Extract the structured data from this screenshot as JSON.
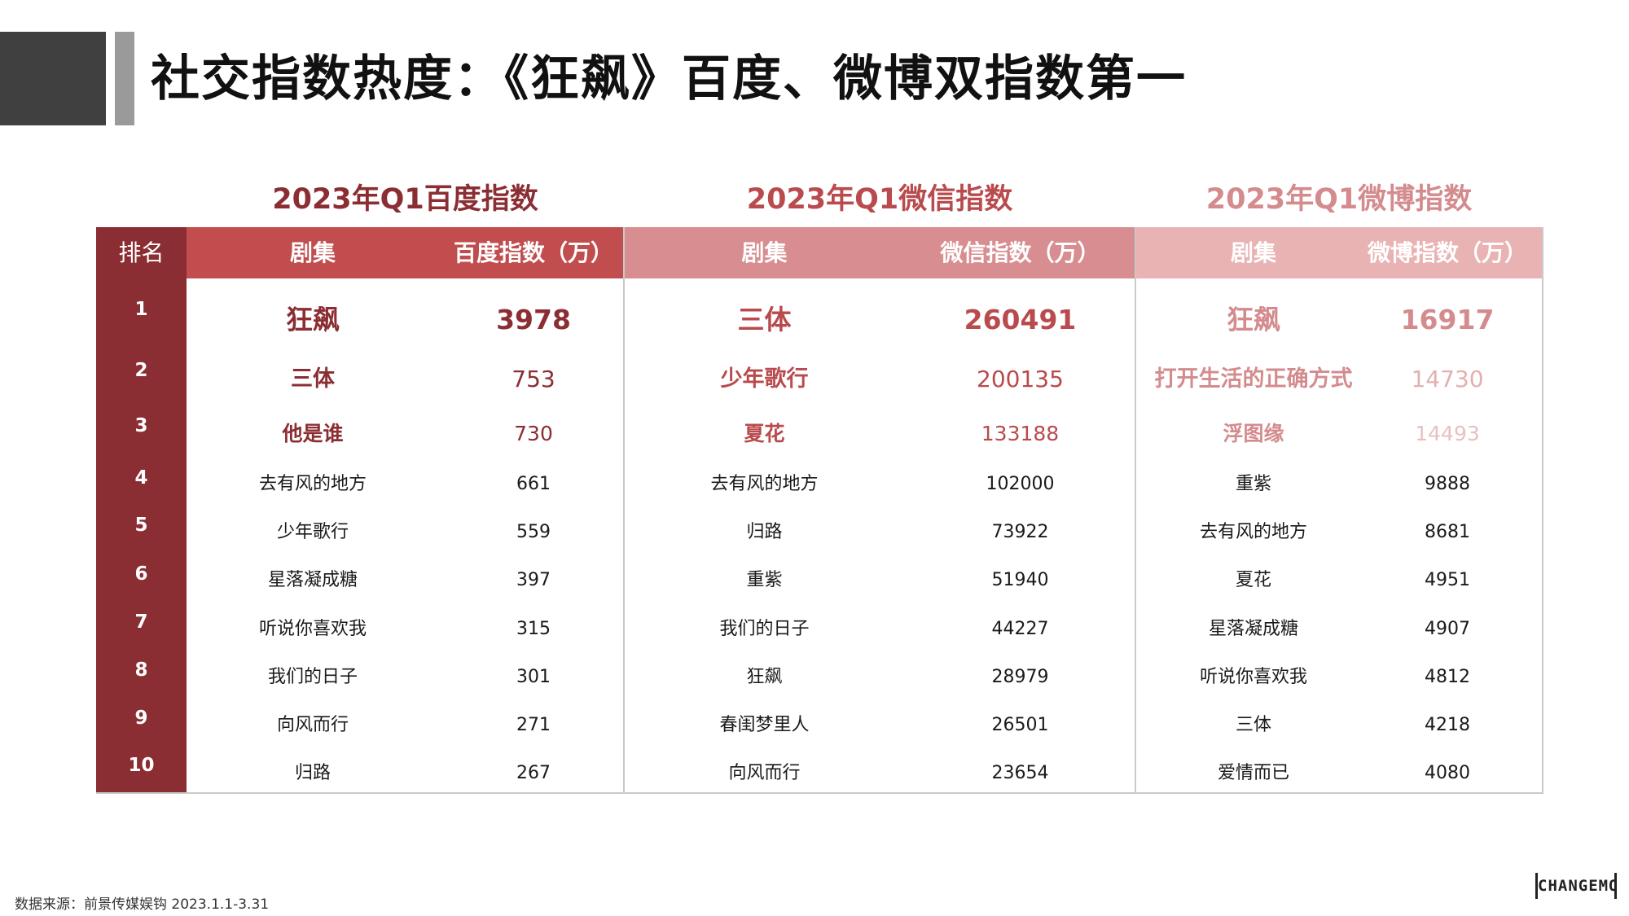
{
  "title": "社交指数热度：《狂飙》百度、微博双指数第一",
  "rank_header": "排名",
  "ranks": [
    "1",
    "2",
    "3",
    "4",
    "5",
    "6",
    "7",
    "8",
    "9",
    "10"
  ],
  "baidu": {
    "title": "2023年Q1百度指数",
    "col_name": "剧集",
    "col_value": "百度指数（万）",
    "rows": [
      {
        "name": "狂飙",
        "value": "3978"
      },
      {
        "name": "三体",
        "value": "753"
      },
      {
        "name": "他是谁",
        "value": "730"
      },
      {
        "name": "去有风的地方",
        "value": "661"
      },
      {
        "name": "少年歌行",
        "value": "559"
      },
      {
        "name": "星落凝成糖",
        "value": "397"
      },
      {
        "name": "听说你喜欢我",
        "value": "315"
      },
      {
        "name": "我们的日子",
        "value": "301"
      },
      {
        "name": "向风而行",
        "value": "271"
      },
      {
        "name": "归路",
        "value": "267"
      }
    ]
  },
  "weixin": {
    "title": "2023年Q1微信指数",
    "col_name": "剧集",
    "col_value": "微信指数（万）",
    "rows": [
      {
        "name": "三体",
        "value": "260491"
      },
      {
        "name": "少年歌行",
        "value": "200135"
      },
      {
        "name": "夏花",
        "value": "133188"
      },
      {
        "name": "去有风的地方",
        "value": "102000"
      },
      {
        "name": "归路",
        "value": "73922"
      },
      {
        "name": "重紫",
        "value": "51940"
      },
      {
        "name": "我们的日子",
        "value": "44227"
      },
      {
        "name": "狂飙",
        "value": "28979"
      },
      {
        "name": "春闺梦里人",
        "value": "26501"
      },
      {
        "name": "向风而行",
        "value": "23654"
      }
    ]
  },
  "weibo": {
    "title": "2023年Q1微博指数",
    "col_name": "剧集",
    "col_value": "微博指数（万）",
    "rows": [
      {
        "name": "狂飙",
        "value": "16917"
      },
      {
        "name": "打开生活的正确方式",
        "value": "14730"
      },
      {
        "name": "浮图缘",
        "value": "14493"
      },
      {
        "name": "重紫",
        "value": "9888"
      },
      {
        "name": "去有风的地方",
        "value": "8681"
      },
      {
        "name": "夏花",
        "value": "4951"
      },
      {
        "name": "星落凝成糖",
        "value": "4907"
      },
      {
        "name": "听说你喜欢我",
        "value": "4812"
      },
      {
        "name": "三体",
        "value": "4218"
      },
      {
        "name": "爱情而已",
        "value": "4080"
      }
    ]
  },
  "colors": {
    "dark_red": "#8b2e33",
    "baidu_header": "#c14d4f",
    "weixin_header": "#d88e90",
    "weibo_header": "#e9b3b4",
    "baidu_title": "#8b2e33",
    "weixin_title": "#b94a4d",
    "weibo_title": "#d48b8e"
  },
  "footer": "数据来源：前景传媒娱钩  2023.1.1-3.31",
  "logo": "CHANGEMO"
}
